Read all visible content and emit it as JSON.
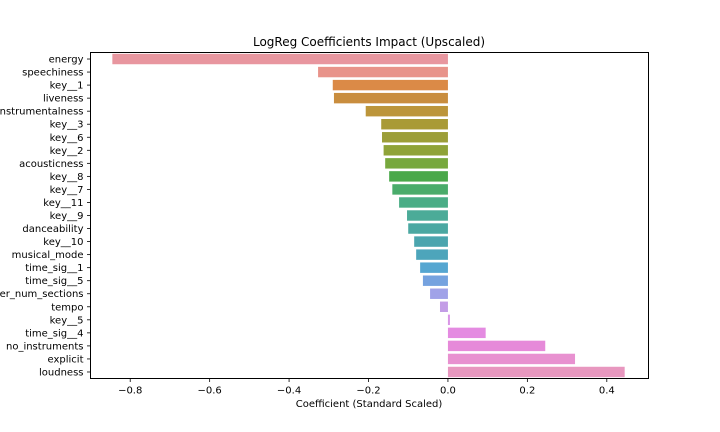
{
  "chart_data": {
    "type": "bar",
    "orientation": "horizontal",
    "title": "LogReg Coefficients Impact (Upscaled)",
    "xlabel": "Coefficient (Standard Scaled)",
    "ylabel": "",
    "xlim": [
      -0.9,
      0.505
    ],
    "xticks": [
      -0.8,
      -0.6,
      -0.4,
      -0.2,
      0.0,
      0.2,
      0.4
    ],
    "xtick_labels": [
      "−0.8",
      "−0.6",
      "−0.4",
      "−0.2",
      "0.0",
      "0.2",
      "0.4"
    ],
    "grid": false,
    "categories": [
      "energy",
      "speechiness",
      "key__1",
      "liveness",
      "instrumentalness",
      "key__3",
      "key__6",
      "key__2",
      "acousticness",
      "key__8",
      "key__7",
      "key__11",
      "key__9",
      "danceability",
      "key__10",
      "musical_mode",
      "time_sig__1",
      "time_sig__5",
      "number_num_sections",
      "tempo",
      "key__5",
      "time_sig__4",
      "no_instruments",
      "explicit",
      "loudness"
    ],
    "values": [
      -0.845,
      -0.327,
      -0.29,
      -0.287,
      -0.207,
      -0.168,
      -0.166,
      -0.162,
      -0.158,
      -0.148,
      -0.14,
      -0.123,
      -0.103,
      -0.1,
      -0.085,
      -0.08,
      -0.07,
      -0.063,
      -0.045,
      -0.02,
      0.005,
      0.095,
      0.245,
      0.32,
      0.445
    ],
    "colors": [
      "#e8969f",
      "#e8938a",
      "#db8a47",
      "#c98d3e",
      "#bc953a",
      "#a99a36",
      "#9c9e38",
      "#8fa338",
      "#77a83d",
      "#4aa84a",
      "#4aac6b",
      "#4aad86",
      "#4bab98",
      "#4ba8a2",
      "#4ba5ae",
      "#4da5bb",
      "#55a6d1",
      "#75a2df",
      "#a0a2e8",
      "#c39de6",
      "#d995e6",
      "#e48be1",
      "#e68ad9",
      "#e891d0",
      "#e897bf"
    ]
  }
}
